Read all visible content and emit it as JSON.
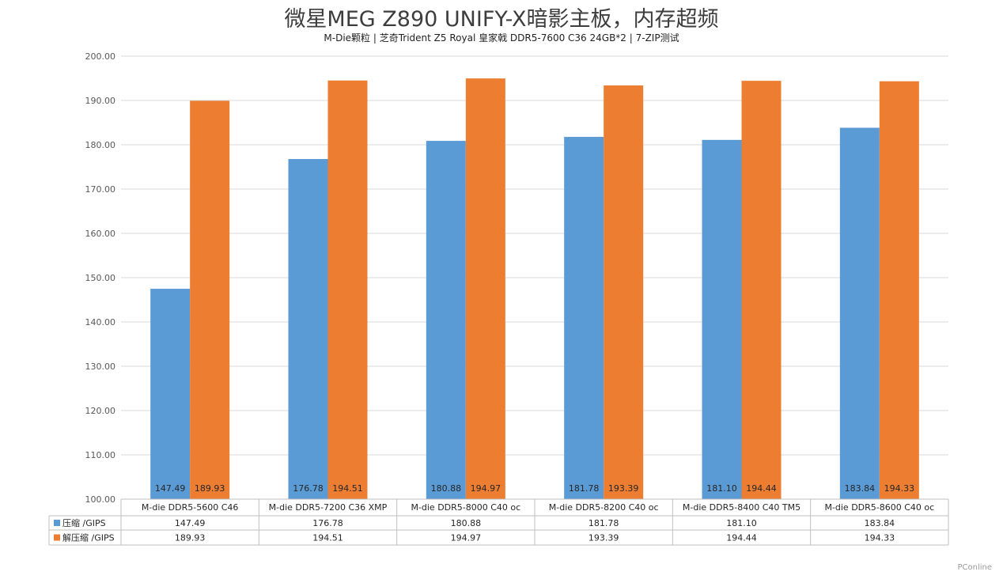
{
  "title": "微星MEG Z890 UNIFY-X暗影主板，内存超频",
  "subtitle": "M-Die颗粒 | 芝奇Trident Z5 Royal 皇家戟 DDR5-7600 C36 24GB*2 | 7-ZIP测试",
  "watermark": "PConline",
  "colors": {
    "compress": "#5b9bd5",
    "decompress": "#ed7d31",
    "grid": "#d9d9d9",
    "axis_text": "#595959"
  },
  "chart_data": {
    "type": "bar",
    "categories": [
      "M-die DDR5-5600 C46",
      "M-die DDR5-7200 C36 XMP",
      "M-die DDR5-8000 C40 oc",
      "M-die DDR5-8200 C40 oc",
      "M-die DDR5-8400 C40 TM5",
      "M-die DDR5-8600 C40 oc"
    ],
    "series": [
      {
        "name": "压缩 /GIPS",
        "values": [
          147.49,
          176.78,
          180.88,
          181.78,
          181.1,
          183.84
        ]
      },
      {
        "name": "解压缩 /GIPS",
        "values": [
          189.93,
          194.51,
          194.97,
          193.39,
          194.44,
          194.33
        ]
      }
    ],
    "ylim": [
      100,
      200
    ],
    "yticks": [
      "100.00",
      "110.00",
      "120.00",
      "130.00",
      "140.00",
      "150.00",
      "160.00",
      "170.00",
      "180.00",
      "190.00",
      "200.00"
    ],
    "grid": true,
    "legend": "data-table"
  }
}
